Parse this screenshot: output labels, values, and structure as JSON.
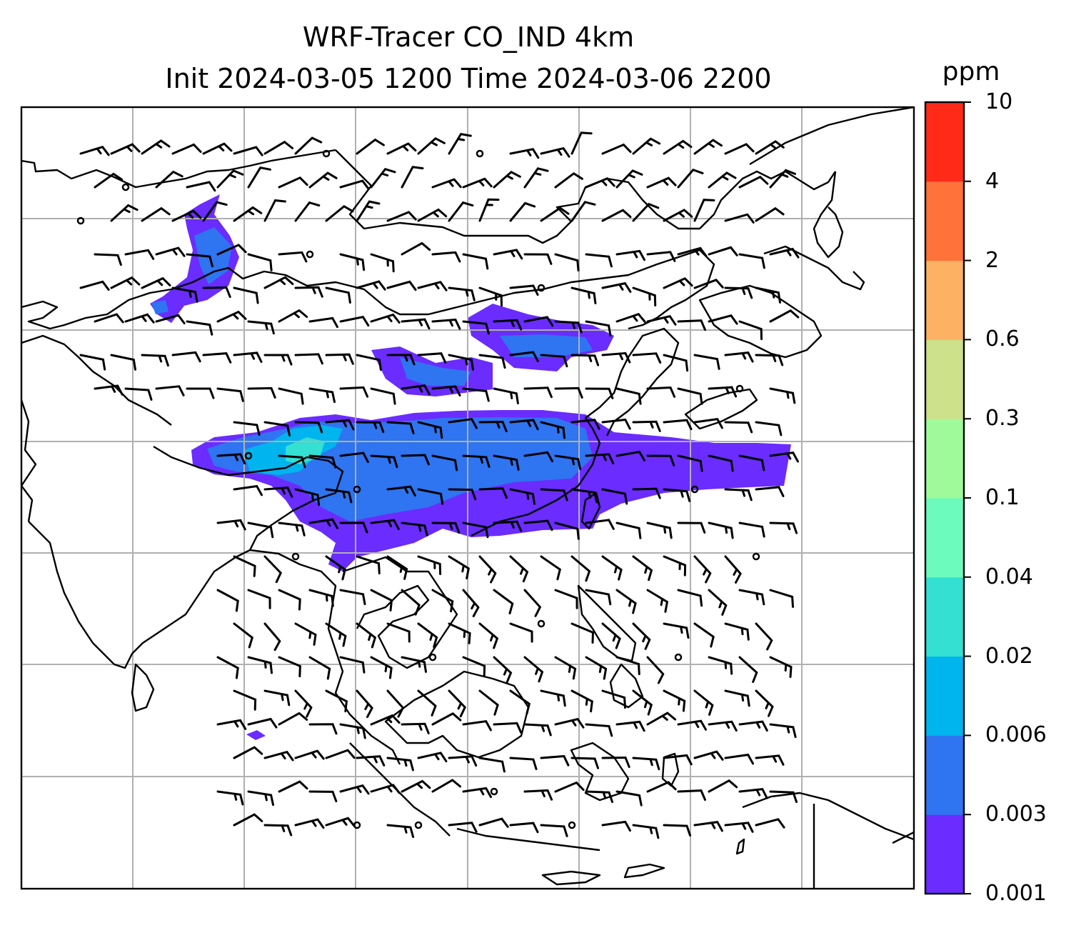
{
  "header": {
    "title_line1": "WRF-Tracer CO_IND 4km",
    "title_line2": "Init 2024-03-05 1200 Time 2024-03-06 2200"
  },
  "colorbar": {
    "unit": "ppm",
    "levels": [
      {
        "label": "0.001",
        "color": "#6a2cff"
      },
      {
        "label": "0.003",
        "color": "#2f74f0"
      },
      {
        "label": "0.006",
        "color": "#00b4ee"
      },
      {
        "label": "0.02",
        "color": "#33e0d2"
      },
      {
        "label": "0.04",
        "color": "#6cfbbc"
      },
      {
        "label": "0.1",
        "color": "#9ffb9a"
      },
      {
        "label": "0.3",
        "color": "#cde08a"
      },
      {
        "label": "0.6",
        "color": "#fdb163"
      },
      {
        "label": "2",
        "color": "#ff723a"
      },
      {
        "label": "4",
        "color": "#ff2b18"
      },
      {
        "label": "10",
        "color": null
      }
    ]
  },
  "map": {
    "background": "#ffffff",
    "gridlines": true,
    "coastline_color": "#000000",
    "gridline_color": "#b0b0b0",
    "overlay": "wind barbs",
    "plume_colors": {
      "low": "#6a2cff",
      "mid": "#2f74f0",
      "high": "#00b4ee",
      "peak": "#33e0d2"
    }
  }
}
